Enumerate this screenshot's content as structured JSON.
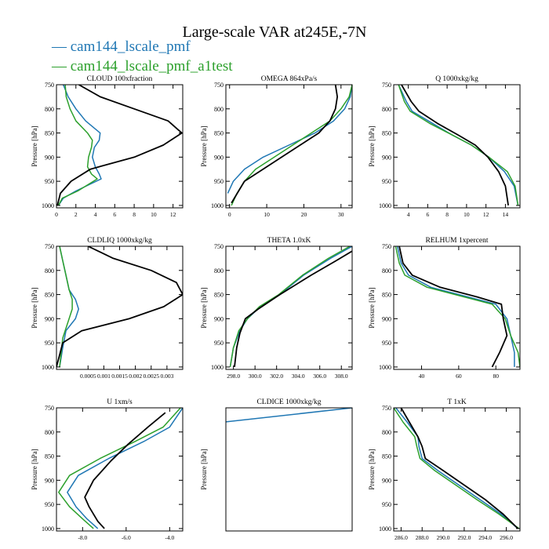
{
  "title": "Large-scale VAR at245E,-7N",
  "legend": [
    {
      "label": "— cam144_lscale_pmf",
      "color": "#1f77b4"
    },
    {
      "label": "— cam144_lscale_pmf_a1test",
      "color": "#2ca02c"
    }
  ],
  "colors": {
    "s1": "#1f77b4",
    "s2": "#2ca02c",
    "s3": "#000000"
  },
  "chart_data": [
    {
      "type": "line",
      "title": "CLOUD  100xfraction",
      "ylabel": "Pressure [hPa]",
      "xlim": [
        0,
        13
      ],
      "ylim": [
        1005,
        750
      ],
      "xticks": [
        0,
        2,
        4,
        6,
        8,
        10,
        12
      ],
      "xtick_labels": [
        "0",
        "2",
        "4",
        "6",
        "8",
        "10",
        "12"
      ],
      "yticks": [
        750,
        800,
        850,
        900,
        950,
        1000
      ],
      "ytick_labels": [
        "750",
        "800",
        "850",
        "900",
        "950",
        "1000"
      ],
      "series": [
        {
          "x": [
            0.7,
            1.2,
            2.0,
            3.0,
            4.5,
            4.4,
            3.9,
            3.7,
            4.0,
            4.4,
            4.6,
            2.0,
            0.7,
            0.2
          ],
          "y": [
            750,
            775,
            800,
            825,
            850,
            865,
            880,
            900,
            920,
            935,
            945,
            970,
            985,
            1000
          ]
        },
        {
          "x": [
            0.9,
            1.0,
            1.4,
            2.0,
            3.2,
            3.7,
            3.6,
            3.3,
            3.2,
            3.6,
            4.2,
            2.2,
            0.6,
            0.2
          ],
          "y": [
            750,
            775,
            800,
            825,
            850,
            865,
            880,
            900,
            920,
            935,
            945,
            970,
            985,
            1000
          ]
        },
        {
          "x": [
            2.3,
            4.5,
            8.0,
            11.5,
            12.9,
            11.0,
            8.0,
            3.5,
            1.5,
            0.4,
            0.1
          ],
          "y": [
            750,
            775,
            800,
            825,
            850,
            875,
            900,
            925,
            950,
            975,
            1000
          ]
        }
      ]
    },
    {
      "type": "line",
      "title": "OMEGA  864xPa/s",
      "ylabel": "Pressure [hPa]",
      "xlim": [
        -1,
        33
      ],
      "ylim": [
        1005,
        750
      ],
      "xticks": [
        0,
        10,
        20,
        30
      ],
      "xtick_labels": [
        "0",
        "10",
        "20",
        "30"
      ],
      "yticks": [
        750,
        800,
        850,
        900,
        950,
        1000
      ],
      "ytick_labels": [
        "750",
        "800",
        "850",
        "900",
        "950",
        "1000"
      ],
      "series": [
        {
          "x": [
            33,
            32.5,
            31,
            28,
            23,
            16,
            9,
            4,
            1,
            -0.5
          ],
          "y": [
            750,
            775,
            800,
            825,
            850,
            875,
            900,
            925,
            950,
            975
          ]
        },
        {
          "x": [
            33,
            32.2,
            30,
            27,
            22,
            17,
            12,
            7,
            4,
            2,
            0.5
          ],
          "y": [
            750,
            775,
            800,
            825,
            850,
            875,
            900,
            925,
            950,
            975,
            1000
          ]
        },
        {
          "x": [
            28.5,
            29,
            28.5,
            27,
            24,
            19,
            14,
            9,
            4,
            0.5
          ],
          "y": [
            750,
            775,
            800,
            825,
            850,
            875,
            900,
            925,
            950,
            995
          ]
        }
      ]
    },
    {
      "type": "line",
      "title": "Q  1000xkg/kg",
      "ylabel": "Pressure [hPa]",
      "xlim": [
        2.5,
        15.5
      ],
      "ylim": [
        1005,
        750
      ],
      "xticks": [
        4,
        6,
        8,
        10,
        12,
        14
      ],
      "xtick_labels": [
        "4",
        "6",
        "8",
        "10",
        "12",
        "14"
      ],
      "yticks": [
        750,
        800,
        850,
        900,
        950,
        1000
      ],
      "ytick_labels": [
        "750",
        "800",
        "850",
        "900",
        "950",
        "1000"
      ],
      "series": [
        {
          "x": [
            3.0,
            3.8,
            4.4,
            6.5,
            8.6,
            10.5,
            12.3,
            13.9,
            14.9,
            15.3
          ],
          "y": [
            750,
            785,
            805,
            830,
            855,
            875,
            900,
            930,
            960,
            1000
          ]
        },
        {
          "x": [
            3.0,
            3.6,
            4.2,
            6.2,
            8.6,
            10.5,
            12.3,
            14.2,
            15.0,
            15.3
          ],
          "y": [
            750,
            785,
            805,
            830,
            855,
            875,
            900,
            930,
            960,
            1000
          ]
        },
        {
          "x": [
            3.3,
            4.3,
            5.1,
            7.0,
            9.2,
            10.9,
            12.2,
            13.3,
            14.0,
            14.3
          ],
          "y": [
            750,
            785,
            805,
            830,
            855,
            875,
            900,
            930,
            960,
            1000
          ]
        }
      ]
    },
    {
      "type": "line",
      "title": "CLDLIQ  1000xkg/kg",
      "ylabel": "Pressure [hPa]",
      "xlim": [
        -0.0005,
        0.0035
      ],
      "ylim": [
        1005,
        750
      ],
      "xticks": [
        0.0005,
        0.001,
        0.0015,
        0.002,
        0.0025,
        0.003
      ],
      "xtick_labels": [
        "0.0005",
        "0.001",
        "0.0015",
        "0.002",
        "0.0025",
        "0.003"
      ],
      "yticks": [
        750,
        800,
        850,
        900,
        950,
        1000
      ],
      "ytick_labels": [
        "750",
        "800",
        "850",
        "900",
        "950",
        "1000"
      ],
      "series": [
        {
          "x": [
            -0.0004,
            -0.0003,
            -0.0002,
            -0.0001,
            0.0001,
            0.0002,
            0.0001,
            -0.0002,
            -0.0003,
            -0.0004
          ],
          "y": [
            750,
            780,
            810,
            840,
            860,
            880,
            900,
            925,
            960,
            1000
          ]
        },
        {
          "x": [
            -0.0004,
            -0.0003,
            -0.0002,
            -0.0001,
            0.0,
            0.0,
            -0.0001,
            -0.0003,
            -0.0004
          ],
          "y": [
            750,
            780,
            810,
            840,
            860,
            880,
            900,
            940,
            1000
          ]
        },
        {
          "x": [
            0.0005,
            0.0013,
            0.0025,
            0.0033,
            0.0035,
            0.0029,
            0.0018,
            0.0003,
            -0.0003,
            -0.0005
          ],
          "y": [
            750,
            775,
            800,
            825,
            850,
            875,
            900,
            925,
            950,
            1000
          ]
        }
      ]
    },
    {
      "type": "line",
      "title": "THETA  1.0xK",
      "ylabel": "Pressure [hPa]",
      "xlim": [
        297.3,
        309.0
      ],
      "ylim": [
        1005,
        750
      ],
      "xticks": [
        298,
        300,
        302,
        304,
        306,
        308
      ],
      "xtick_labels": [
        "298.0",
        "300.0",
        "302.0",
        "304.0",
        "306.0",
        "308.0"
      ],
      "yticks": [
        750,
        800,
        850,
        900,
        950,
        1000
      ],
      "ytick_labels": [
        "750",
        "800",
        "850",
        "900",
        "950",
        "1000"
      ],
      "series": [
        {
          "x": [
            309.0,
            307.0,
            304.5,
            302.3,
            300.5,
            299.3,
            298.6,
            298.0,
            297.7
          ],
          "y": [
            750,
            775,
            810,
            850,
            875,
            900,
            925,
            960,
            1000
          ]
        },
        {
          "x": [
            308.8,
            306.8,
            304.4,
            302.2,
            300.4,
            299.3,
            298.5,
            298.0,
            297.7
          ],
          "y": [
            750,
            775,
            810,
            850,
            875,
            900,
            925,
            960,
            1000
          ]
        },
        {
          "x": [
            309.0,
            307.5,
            305.2,
            302.3,
            300.3,
            299.1,
            298.6,
            298.3,
            298.1
          ],
          "y": [
            760,
            780,
            810,
            850,
            880,
            900,
            930,
            960,
            1000
          ]
        }
      ]
    },
    {
      "type": "line",
      "title": "RELHUM  1xpercent",
      "ylabel": "Pressure [hPa]",
      "xlim": [
        25,
        93
      ],
      "ylim": [
        1005,
        750
      ],
      "xticks": [
        40,
        60,
        80
      ],
      "xtick_labels": [
        "40",
        "60",
        "80"
      ],
      "yticks": [
        750,
        800,
        850,
        900,
        950,
        1000
      ],
      "ytick_labels": [
        "750",
        "800",
        "850",
        "900",
        "950",
        "1000"
      ],
      "series": [
        {
          "x": [
            27,
            29,
            33,
            45,
            65,
            80,
            86,
            88,
            90,
            90
          ],
          "y": [
            750,
            785,
            810,
            835,
            855,
            870,
            900,
            935,
            970,
            1000
          ]
        },
        {
          "x": [
            26,
            28,
            31,
            43,
            63,
            78,
            85,
            88,
            92,
            93
          ],
          "y": [
            750,
            785,
            810,
            835,
            855,
            870,
            900,
            935,
            970,
            1000
          ]
        },
        {
          "x": [
            28,
            30,
            35,
            50,
            70,
            83,
            84,
            86,
            82,
            78
          ],
          "y": [
            750,
            785,
            810,
            835,
            855,
            870,
            900,
            935,
            970,
            1000
          ]
        }
      ]
    },
    {
      "type": "line",
      "title": "U  1xm/s",
      "ylabel": "Pressure [hPa]",
      "xlim": [
        -9.2,
        -3.4
      ],
      "ylim": [
        1005,
        750
      ],
      "xticks": [
        -8,
        -6,
        -4
      ],
      "xtick_labels": [
        "-8.0",
        "-6.0",
        "-4.0"
      ],
      "yticks": [
        750,
        800,
        850,
        900,
        950,
        1000
      ],
      "ytick_labels": [
        "750",
        "800",
        "850",
        "900",
        "950",
        "1000"
      ],
      "series": [
        {
          "x": [
            -3.4,
            -4.0,
            -5.2,
            -6.8,
            -8.2,
            -8.7,
            -8.3,
            -7.8,
            -7.3
          ],
          "y": [
            750,
            790,
            820,
            855,
            890,
            925,
            955,
            980,
            1000
          ]
        },
        {
          "x": [
            -3.5,
            -4.3,
            -5.6,
            -7.2,
            -8.6,
            -9.1,
            -8.6,
            -8.0,
            -7.5
          ],
          "y": [
            750,
            790,
            820,
            855,
            890,
            925,
            955,
            980,
            1000
          ]
        },
        {
          "x": [
            -4.2,
            -5.0,
            -5.9,
            -6.7,
            -7.5,
            -7.9,
            -7.7,
            -7.3,
            -7.0
          ],
          "y": [
            760,
            790,
            825,
            860,
            900,
            935,
            955,
            985,
            1000
          ]
        }
      ]
    },
    {
      "type": "line",
      "title": "CLDICE  1000xkg/kg",
      "ylabel": "Pressure [hPa]",
      "xlim": [
        0,
        1
      ],
      "ylim": [
        1005,
        750
      ],
      "xticks": [],
      "xtick_labels": [],
      "yticks": [],
      "ytick_labels": [],
      "series": [
        {
          "x": [
            0.0,
            1.0
          ],
          "y": [
            779,
            750
          ]
        }
      ]
    },
    {
      "type": "line",
      "title": "T  1xK",
      "ylabel": "Pressure [hPa]",
      "xlim": [
        285.3,
        297.3
      ],
      "ylim": [
        1005,
        750
      ],
      "xticks": [
        286,
        288,
        290,
        292,
        294,
        296
      ],
      "xtick_labels": [
        "286.0",
        "288.0",
        "290.0",
        "292.0",
        "294.0",
        "296.0"
      ],
      "yticks": [
        750,
        800,
        850,
        900,
        950,
        1000
      ],
      "ytick_labels": [
        "750",
        "800",
        "850",
        "900",
        "950",
        "1000"
      ],
      "series": [
        {
          "x": [
            285.5,
            286.6,
            287.6,
            287.7,
            288.0,
            289.5,
            291.5,
            293.5,
            295.5,
            297.1
          ],
          "y": [
            750,
            780,
            810,
            830,
            855,
            880,
            910,
            940,
            970,
            1000
          ]
        },
        {
          "x": [
            285.3,
            286.2,
            287.3,
            287.5,
            287.8,
            289.2,
            291.2,
            293.2,
            295.3,
            297.2
          ],
          "y": [
            750,
            780,
            810,
            830,
            855,
            880,
            910,
            940,
            970,
            1000
          ]
        },
        {
          "x": [
            286.0,
            286.8,
            287.6,
            288.0,
            288.3,
            290.0,
            292.0,
            294.0,
            295.7,
            297.1
          ],
          "y": [
            750,
            780,
            810,
            830,
            855,
            880,
            910,
            940,
            970,
            1000
          ]
        }
      ]
    }
  ]
}
